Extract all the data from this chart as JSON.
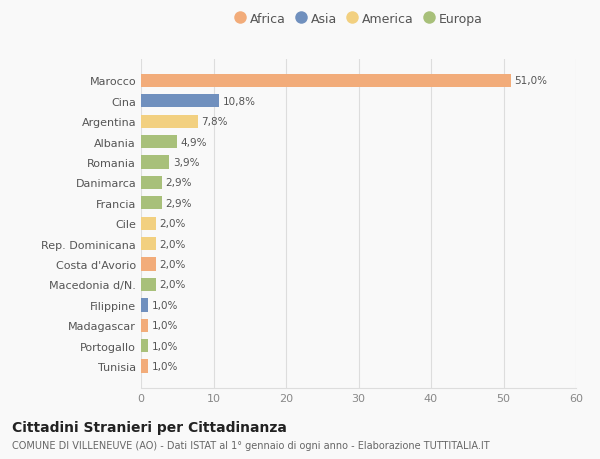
{
  "countries": [
    "Marocco",
    "Cina",
    "Argentina",
    "Albania",
    "Romania",
    "Danimarca",
    "Francia",
    "Cile",
    "Rep. Dominicana",
    "Costa d'Avorio",
    "Macedonia d/N.",
    "Filippine",
    "Madagascar",
    "Portogallo",
    "Tunisia"
  ],
  "values": [
    51.0,
    10.8,
    7.8,
    4.9,
    3.9,
    2.9,
    2.9,
    2.0,
    2.0,
    2.0,
    2.0,
    1.0,
    1.0,
    1.0,
    1.0
  ],
  "labels": [
    "51,0%",
    "10,8%",
    "7,8%",
    "4,9%",
    "3,9%",
    "2,9%",
    "2,9%",
    "2,0%",
    "2,0%",
    "2,0%",
    "2,0%",
    "1,0%",
    "1,0%",
    "1,0%",
    "1,0%"
  ],
  "continents": [
    "Africa",
    "Asia",
    "America",
    "Europa",
    "Europa",
    "Europa",
    "Europa",
    "America",
    "America",
    "Africa",
    "Europa",
    "Asia",
    "Africa",
    "Europa",
    "Africa"
  ],
  "continent_colors": {
    "Africa": "#F2AC7A",
    "Asia": "#7090BE",
    "America": "#F2D080",
    "Europa": "#A8C07A"
  },
  "legend_order": [
    "Africa",
    "Asia",
    "America",
    "Europa"
  ],
  "title": "Cittadini Stranieri per Cittadinanza",
  "subtitle": "COMUNE DI VILLENEUVE (AO) - Dati ISTAT al 1° gennaio di ogni anno - Elaborazione TUTTITALIA.IT",
  "xlim": [
    0,
    60
  ],
  "xticks": [
    0,
    10,
    20,
    30,
    40,
    50,
    60
  ],
  "background_color": "#f9f9f9",
  "grid_color": "#dddddd"
}
